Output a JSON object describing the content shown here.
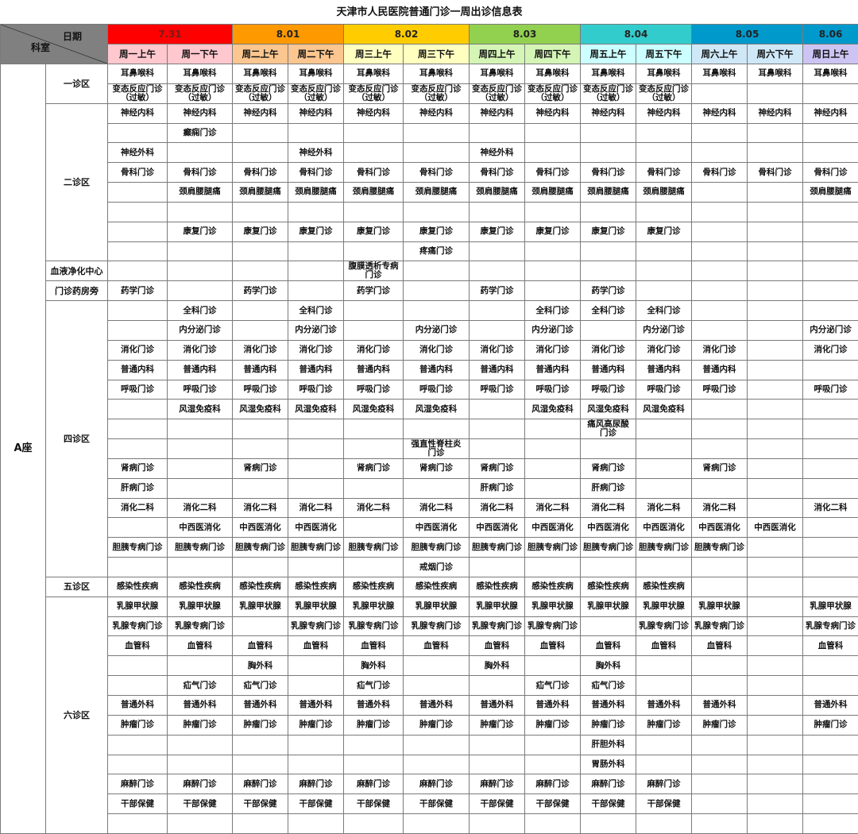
{
  "title": "天津市人民医院普通门诊一周出诊信息表",
  "header": {
    "corner_date": "日期",
    "corner_dept": "科室",
    "dates": [
      {
        "label": "7.31",
        "bg": "#ff0000",
        "color": "#7a1a1a"
      },
      {
        "label": "8.01",
        "bg": "#ff9900",
        "color": "#222222"
      },
      {
        "label": "8.02",
        "bg": "#ffcc00",
        "color": "#222222"
      },
      {
        "label": "8.03",
        "bg": "#92d050",
        "color": "#222222"
      },
      {
        "label": "8.04",
        "bg": "#33cccc",
        "color": "#222222"
      },
      {
        "label": "8.05",
        "bg": "#0099cc",
        "color": "#222222"
      },
      {
        "label": "8.06",
        "bg": "#0099cc",
        "color": "#222222"
      }
    ],
    "days": [
      {
        "label": "周一上午",
        "bg": "#ffc7ce"
      },
      {
        "label": "周一下午",
        "bg": "#ffc7ce"
      },
      {
        "label": "周二上午",
        "bg": "#fbc68f"
      },
      {
        "label": "周二下午",
        "bg": "#fbc68f"
      },
      {
        "label": "周三上午",
        "bg": "#ffffc0"
      },
      {
        "label": "周三下午",
        "bg": "#ffffc0"
      },
      {
        "label": "周四上午",
        "bg": "#d4f5b6"
      },
      {
        "label": "周四下午",
        "bg": "#d4f5b6"
      },
      {
        "label": "周五上午",
        "bg": "#ccffff"
      },
      {
        "label": "周五下午",
        "bg": "#ccffff"
      },
      {
        "label": "周六上午",
        "bg": "#cfe8f8"
      },
      {
        "label": "周六下午",
        "bg": "#cfe8f8"
      },
      {
        "label": "周日上午",
        "bg": "#ccc4f2"
      }
    ]
  },
  "building": "A座",
  "zones": [
    {
      "name": "一诊区",
      "rows": [
        [
          "耳鼻喉科",
          "耳鼻喉科",
          "耳鼻喉科",
          "耳鼻喉科",
          "耳鼻喉科",
          "耳鼻喉科",
          "耳鼻喉科",
          "耳鼻喉科",
          "耳鼻喉科",
          "耳鼻喉科",
          "耳鼻喉科",
          "耳鼻喉科",
          "耳鼻喉科"
        ],
        [
          "变态反应门诊\n（过敏）",
          "变态反应门诊\n（过敏）",
          "变态反应门诊\n（过敏）",
          "变态反应门诊\n（过敏）",
          "变态反应门诊\n（过敏）",
          "变态反应门诊\n（过敏）",
          "变态反应门诊\n（过敏）",
          "变态反应门诊\n（过敏）",
          "变态反应门诊\n（过敏）",
          "变态反应门诊\n（过敏）",
          "",
          "",
          ""
        ]
      ]
    },
    {
      "name": "二诊区",
      "rows": [
        [
          "神经内科",
          "神经内科",
          "神经内科",
          "神经内科",
          "神经内科",
          "神经内科",
          "神经内科",
          "神经内科",
          "神经内科",
          "神经内科",
          "神经内科",
          "神经内科",
          "神经内科"
        ],
        [
          "",
          "癫痫门诊",
          "",
          "",
          "",
          "",
          "",
          "",
          "",
          "",
          "",
          "",
          ""
        ],
        [
          "神经外科",
          "",
          "",
          "神经外科",
          "",
          "",
          "神经外科",
          "",
          "",
          "",
          "",
          "",
          ""
        ],
        [
          "骨科门诊",
          "骨科门诊",
          "骨科门诊",
          "骨科门诊",
          "骨科门诊",
          "骨科门诊",
          "骨科门诊",
          "骨科门诊",
          "骨科门诊",
          "骨科门诊",
          "骨科门诊",
          "骨科门诊",
          "骨科门诊"
        ],
        [
          "",
          "颈肩腰腿痛",
          "颈肩腰腿痛",
          "颈肩腰腿痛",
          "颈肩腰腿痛",
          "颈肩腰腿痛",
          "颈肩腰腿痛",
          "颈肩腰腿痛",
          "颈肩腰腿痛",
          "颈肩腰腿痛",
          "",
          "",
          "颈肩腰腿痛"
        ],
        [
          "",
          "",
          "",
          "",
          "",
          "",
          "",
          "",
          "",
          "",
          "",
          "",
          ""
        ],
        [
          "",
          "康复门诊",
          "康复门诊",
          "康复门诊",
          "康复门诊",
          "康复门诊",
          "康复门诊",
          "康复门诊",
          "康复门诊",
          "康复门诊",
          "",
          "",
          ""
        ],
        [
          "",
          "",
          "",
          "",
          "",
          "疼痛门诊",
          "",
          "",
          "",
          "",
          "",
          "",
          ""
        ]
      ]
    },
    {
      "name": "血液净化中心",
      "rows": [
        [
          "",
          "",
          "",
          "",
          "腹膜透析专病\n门诊",
          "",
          "",
          "",
          "",
          "",
          "",
          "",
          ""
        ]
      ]
    },
    {
      "name": "门诊药房旁",
      "rows": [
        [
          "药学门诊",
          "",
          "药学门诊",
          "",
          "药学门诊",
          "",
          "药学门诊",
          "",
          "药学门诊",
          "",
          "",
          "",
          ""
        ]
      ]
    },
    {
      "name": "四诊区",
      "rows": [
        [
          "",
          "全科门诊",
          "",
          "全科门诊",
          "",
          "",
          "",
          "全科门诊",
          "全科门诊",
          "全科门诊",
          "",
          "",
          ""
        ],
        [
          "",
          "内分泌门诊",
          "",
          "内分泌门诊",
          "",
          "内分泌门诊",
          "",
          "内分泌门诊",
          "",
          "内分泌门诊",
          "",
          "",
          "内分泌门诊"
        ],
        [
          "消化门诊",
          "消化门诊",
          "消化门诊",
          "消化门诊",
          "消化门诊",
          "消化门诊",
          "消化门诊",
          "消化门诊",
          "消化门诊",
          "消化门诊",
          "消化门诊",
          "",
          "消化门诊"
        ],
        [
          "普通内科",
          "普通内科",
          "普通内科",
          "普通内科",
          "普通内科",
          "普通内科",
          "普通内科",
          "普通内科",
          "普通内科",
          "普通内科",
          "普通内科",
          "",
          ""
        ],
        [
          "呼吸门诊",
          "呼吸门诊",
          "呼吸门诊",
          "呼吸门诊",
          "呼吸门诊",
          "呼吸门诊",
          "呼吸门诊",
          "呼吸门诊",
          "呼吸门诊",
          "呼吸门诊",
          "呼吸门诊",
          "",
          "呼吸门诊"
        ],
        [
          "",
          "风湿免疫科",
          "风湿免疫科",
          "风湿免疫科",
          "风湿免疫科",
          "风湿免疫科",
          "",
          "风湿免疫科",
          "风湿免疫科",
          "风湿免疫科",
          "",
          "",
          ""
        ],
        [
          "",
          "",
          "",
          "",
          "",
          "",
          "",
          "",
          "痛风高尿酸\n门诊",
          "",
          "",
          "",
          ""
        ],
        [
          "",
          "",
          "",
          "",
          "",
          "强直性脊柱炎\n门诊",
          "",
          "",
          "",
          "",
          "",
          "",
          ""
        ],
        [
          "肾病门诊",
          "",
          "肾病门诊",
          "",
          "肾病门诊",
          "肾病门诊",
          "肾病门诊",
          "",
          "肾病门诊",
          "",
          "肾病门诊",
          "",
          ""
        ],
        [
          "肝病门诊",
          "",
          "",
          "",
          "",
          "",
          "肝病门诊",
          "",
          "肝病门诊",
          "",
          "",
          "",
          ""
        ],
        [
          "消化二科",
          "消化二科",
          "消化二科",
          "消化二科",
          "消化二科",
          "消化二科",
          "消化二科",
          "消化二科",
          "消化二科",
          "消化二科",
          "消化二科",
          "",
          "消化二科"
        ],
        [
          "",
          "中西医消化",
          "中西医消化",
          "中西医消化",
          "",
          "中西医消化",
          "中西医消化",
          "中西医消化",
          "中西医消化",
          "中西医消化",
          "中西医消化",
          "中西医消化",
          ""
        ],
        [
          "胆胰专病门诊",
          "胆胰专病门诊",
          "胆胰专病门诊",
          "胆胰专病门诊",
          "胆胰专病门诊",
          "胆胰专病门诊",
          "胆胰专病门诊",
          "胆胰专病门诊",
          "胆胰专病门诊",
          "胆胰专病门诊",
          "胆胰专病门诊",
          "",
          ""
        ],
        [
          "",
          "",
          "",
          "",
          "",
          "戒烟门诊",
          "",
          "",
          "",
          "",
          "",
          "",
          ""
        ]
      ]
    },
    {
      "name": "五诊区",
      "rows": [
        [
          "感染性疾病",
          "感染性疾病",
          "感染性疾病",
          "感染性疾病",
          "感染性疾病",
          "感染性疾病",
          "感染性疾病",
          "感染性疾病",
          "感染性疾病",
          "感染性疾病",
          "",
          "",
          ""
        ]
      ]
    },
    {
      "name": "六诊区",
      "rows": [
        [
          "乳腺甲状腺",
          "乳腺甲状腺",
          "乳腺甲状腺",
          "乳腺甲状腺",
          "乳腺甲状腺",
          "乳腺甲状腺",
          "乳腺甲状腺",
          "乳腺甲状腺",
          "乳腺甲状腺",
          "乳腺甲状腺",
          "乳腺甲状腺",
          "",
          "乳腺甲状腺"
        ],
        [
          "乳腺专病门诊",
          "乳腺专病门诊",
          "",
          "乳腺专病门诊",
          "乳腺专病门诊",
          "乳腺专病门诊",
          "乳腺专病门诊",
          "乳腺专病门诊",
          "",
          "乳腺专病门诊",
          "乳腺专病门诊",
          "",
          "乳腺专病门诊"
        ],
        [
          "血管科",
          "血管科",
          "血管科",
          "血管科",
          "血管科",
          "血管科",
          "血管科",
          "血管科",
          "血管科",
          "血管科",
          "血管科",
          "",
          "血管科"
        ],
        [
          "",
          "",
          "胸外科",
          "",
          "胸外科",
          "",
          "胸外科",
          "",
          "胸外科",
          "",
          "",
          "",
          ""
        ],
        [
          "",
          "疝气门诊",
          "疝气门诊",
          "",
          "疝气门诊",
          "",
          "",
          "疝气门诊",
          "疝气门诊",
          "",
          "",
          "",
          ""
        ],
        [
          "普通外科",
          "普通外科",
          "普通外科",
          "普通外科",
          "普通外科",
          "普通外科",
          "普通外科",
          "普通外科",
          "普通外科",
          "普通外科",
          "普通外科",
          "",
          "普通外科"
        ],
        [
          "肿瘤门诊",
          "肿瘤门诊",
          "肿瘤门诊",
          "肿瘤门诊",
          "肿瘤门诊",
          "肿瘤门诊",
          "肿瘤门诊",
          "肿瘤门诊",
          "肿瘤门诊",
          "肿瘤门诊",
          "肿瘤门诊",
          "",
          "肿瘤门诊"
        ],
        [
          "",
          "",
          "",
          "",
          "",
          "",
          "",
          "",
          "肝胆外科",
          "",
          "",
          "",
          ""
        ],
        [
          "",
          "",
          "",
          "",
          "",
          "",
          "",
          "",
          "胃肠外科",
          "",
          "",
          "",
          ""
        ],
        [
          "麻醉门诊",
          "麻醉门诊",
          "麻醉门诊",
          "麻醉门诊",
          "麻醉门诊",
          "麻醉门诊",
          "麻醉门诊",
          "麻醉门诊",
          "麻醉门诊",
          "麻醉门诊",
          "",
          "",
          ""
        ],
        [
          "干部保健",
          "干部保健",
          "干部保健",
          "干部保健",
          "干部保健",
          "干部保健",
          "干部保健",
          "干部保健",
          "干部保健",
          "干部保健",
          "",
          "",
          ""
        ],
        [
          "",
          "",
          "",
          "",
          "",
          "",
          "",
          "",
          "",
          "",
          "",
          "",
          ""
        ]
      ]
    }
  ]
}
